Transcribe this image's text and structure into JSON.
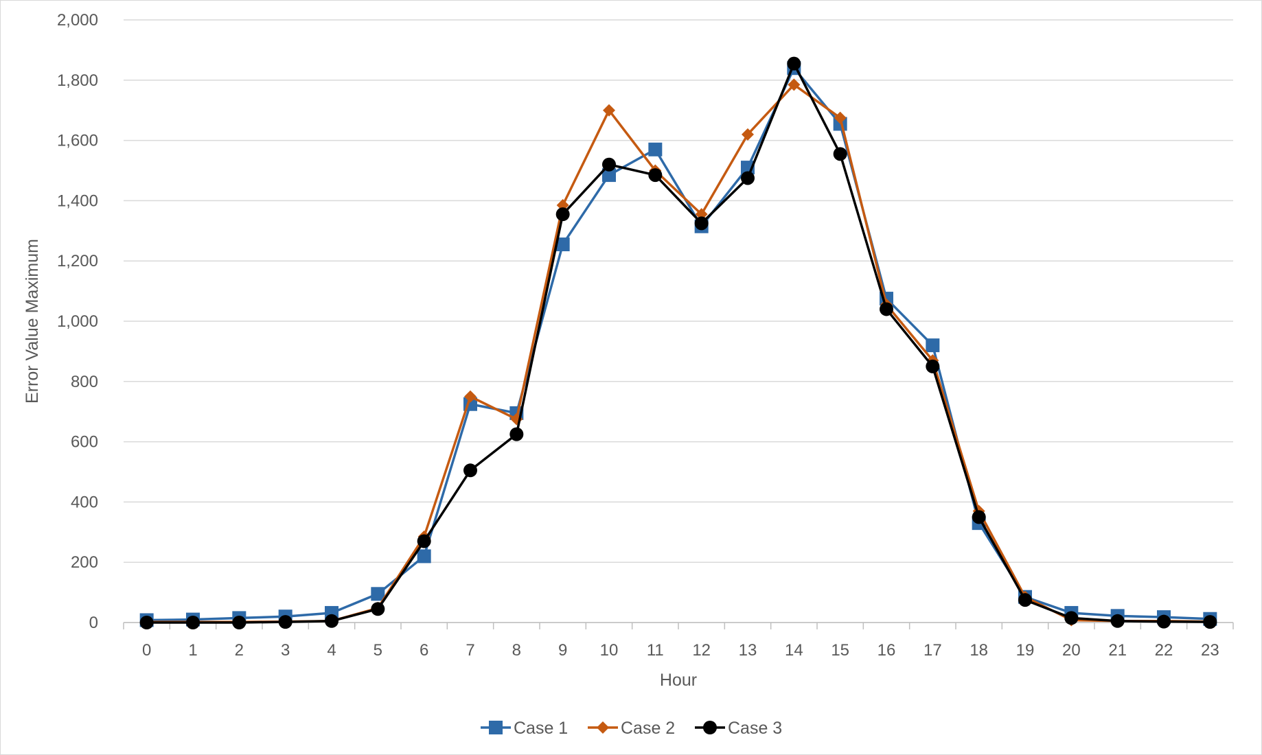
{
  "chart_data": {
    "type": "line",
    "title": "",
    "xlabel": "Hour",
    "ylabel": "Error Value Maximum",
    "x": [
      0,
      1,
      2,
      3,
      4,
      5,
      6,
      7,
      8,
      9,
      10,
      11,
      12,
      13,
      14,
      15,
      16,
      17,
      18,
      19,
      20,
      21,
      22,
      23
    ],
    "ylim": [
      0,
      2000
    ],
    "yticks": [
      0,
      200,
      400,
      600,
      800,
      1000,
      1200,
      1400,
      1600,
      1800,
      2000
    ],
    "ytick_labels": [
      "0",
      "200",
      "400",
      "600",
      "800",
      "1,000",
      "1,200",
      "1,400",
      "1,600",
      "1,800",
      "2,000"
    ],
    "grid": true,
    "legend_position": "bottom",
    "series": [
      {
        "name": "Case 1",
        "marker": "square",
        "color": "#2e6aa8",
        "values": [
          8,
          10,
          15,
          20,
          32,
          95,
          220,
          725,
          695,
          1255,
          1485,
          1570,
          1315,
          1510,
          1840,
          1655,
          1075,
          920,
          330,
          85,
          32,
          22,
          18,
          12
        ]
      },
      {
        "name": "Case 2",
        "marker": "diamond",
        "color": "#c55a11",
        "values": [
          2,
          2,
          2,
          3,
          5,
          48,
          285,
          750,
          675,
          1385,
          1700,
          1500,
          1355,
          1620,
          1785,
          1675,
          1055,
          870,
          370,
          85,
          8,
          5,
          5,
          3
        ]
      },
      {
        "name": "Case 3",
        "marker": "circle",
        "color": "#000000",
        "values": [
          0,
          0,
          0,
          2,
          5,
          45,
          270,
          505,
          625,
          1355,
          1520,
          1485,
          1325,
          1475,
          1855,
          1555,
          1040,
          850,
          350,
          75,
          15,
          5,
          3,
          2
        ]
      }
    ]
  }
}
